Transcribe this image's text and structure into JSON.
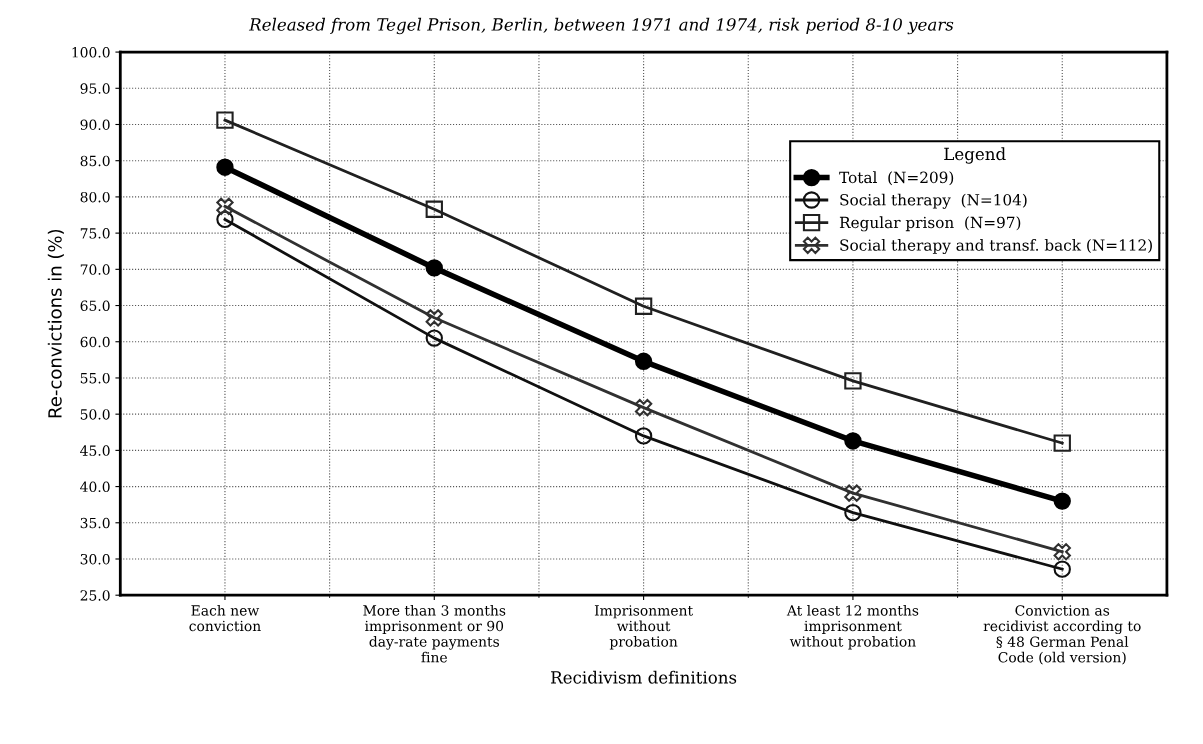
{
  "chart_data": {
    "type": "line",
    "title": "Released from Tegel Prison, Berlin, between 1971 and 1974, risk period 8-10 years",
    "xlabel": "Recidivism definitions",
    "ylabel": "Re-convictions in (%)",
    "categories": [
      "Each new\nconviction",
      "More than 3 months\nimprisonment or 90\nday-rate payments\nfine",
      "Imprisonment\nwithout\nprobation",
      "At least 12 months\nimprisonment\nwithout probation",
      "Conviction as\nrecidivist according to\n§ 48 German Penal\nCode (old version)"
    ],
    "series": [
      {
        "name": "Total  (N=209)",
        "color": "#000000",
        "marker": "circle",
        "values": [
          84.1,
          70.2,
          57.3,
          46.3,
          38.0
        ]
      },
      {
        "name": "Social therapy  (N=104)",
        "color": "#101010",
        "marker": "circle",
        "values": [
          76.9,
          60.5,
          47.0,
          36.4,
          28.6
        ]
      },
      {
        "name": "Regular prison  (N=97)",
        "color": "#202020",
        "marker": "square",
        "values": [
          90.6,
          78.3,
          64.9,
          54.6,
          46.0
        ]
      },
      {
        "name": "Social therapy and transf. back (N=112)",
        "color": "#303030",
        "marker": "cross",
        "values": [
          78.7,
          63.3,
          50.9,
          39.1,
          31.0
        ]
      }
    ],
    "ylim": [
      25,
      100
    ],
    "yticks": [
      {
        "value": 25,
        "label": "25.0"
      },
      {
        "value": 30,
        "label": "30.0"
      },
      {
        "value": 35,
        "label": "35.0"
      },
      {
        "value": 40,
        "label": "40.0"
      },
      {
        "value": 45,
        "label": "45.0"
      },
      {
        "value": 50,
        "label": "50.0"
      },
      {
        "value": 55,
        "label": "55.0"
      },
      {
        "value": 60,
        "label": "60.0"
      },
      {
        "value": 65,
        "label": "65.0"
      },
      {
        "value": 70,
        "label": "70.0"
      },
      {
        "value": 75,
        "label": "75.0"
      },
      {
        "value": 80,
        "label": "80.0"
      },
      {
        "value": 85,
        "label": "85.0"
      },
      {
        "value": 90,
        "label": "90.0"
      },
      {
        "value": 95,
        "label": "95.0"
      },
      {
        "value": 100,
        "label": "100.0"
      }
    ],
    "grid": true,
    "legend": "top right",
    "legend_title": "Legend",
    "line_style": "solid"
  }
}
